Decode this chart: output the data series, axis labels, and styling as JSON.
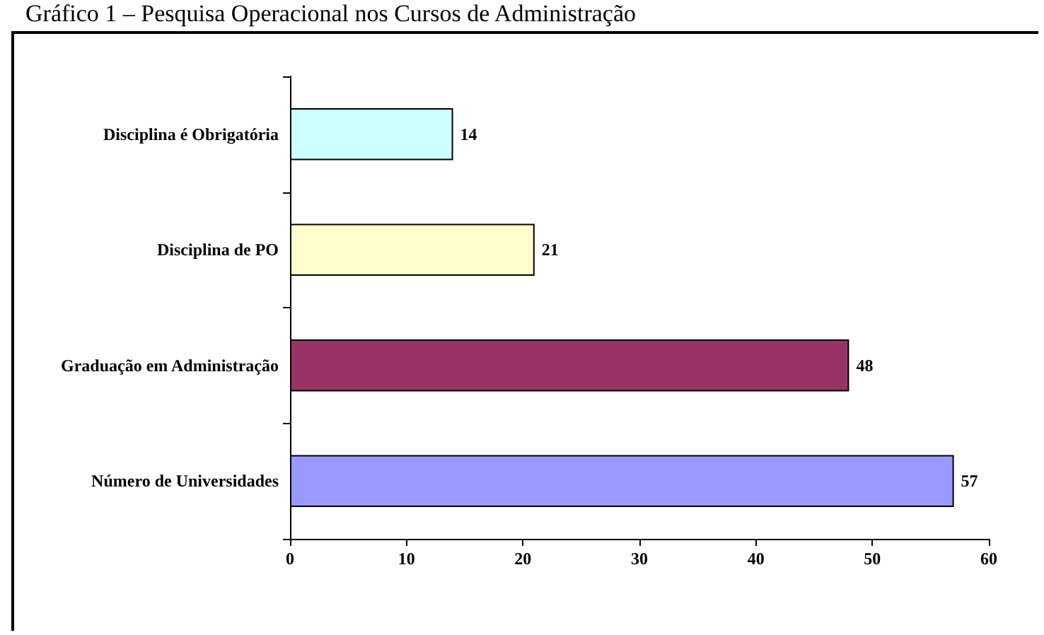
{
  "chart_data": {
    "type": "bar",
    "orientation": "horizontal",
    "title": "Gráfico 1 – Pesquisa Operacional nos Cursos de Administração",
    "categories": [
      "Disciplina é Obrigatória",
      "Disciplina de PO",
      "Graduação em Administração",
      "Número de Universidades"
    ],
    "values": [
      14,
      21,
      48,
      57
    ],
    "colors": [
      "#ccffff",
      "#ffffcc",
      "#993366",
      "#9999ff"
    ],
    "xlim": [
      0,
      60
    ],
    "xticks": [
      0,
      10,
      20,
      30,
      40,
      50,
      60
    ],
    "data_labels": true,
    "grid": false
  }
}
